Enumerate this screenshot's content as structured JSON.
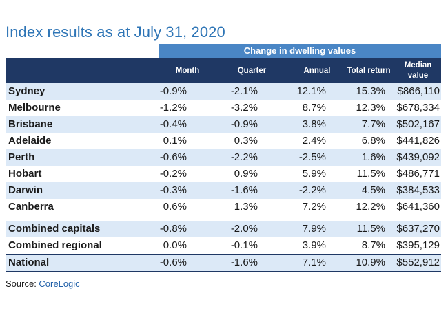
{
  "title": "Index results as at July 31, 2020",
  "band_label": "Change in dwelling values",
  "columns": [
    "Month",
    "Quarter",
    "Annual",
    "Total return",
    "Median value"
  ],
  "rows": [
    {
      "city": "Sydney",
      "month": "-0.9%",
      "quarter": "-2.1%",
      "annual": "12.1%",
      "total": "15.3%",
      "median": "$866,110"
    },
    {
      "city": "Melbourne",
      "month": "-1.2%",
      "quarter": "-3.2%",
      "annual": "8.7%",
      "total": "12.3%",
      "median": "$678,334"
    },
    {
      "city": "Brisbane",
      "month": "-0.4%",
      "quarter": "-0.9%",
      "annual": "3.8%",
      "total": "7.7%",
      "median": "$502,167"
    },
    {
      "city": "Adelaide",
      "month": "0.1%",
      "quarter": "0.3%",
      "annual": "2.4%",
      "total": "6.8%",
      "median": "$441,826"
    },
    {
      "city": "Perth",
      "month": "-0.6%",
      "quarter": "-2.2%",
      "annual": "-2.5%",
      "total": "1.6%",
      "median": "$439,092"
    },
    {
      "city": "Hobart",
      "month": "-0.2%",
      "quarter": "0.9%",
      "annual": "5.9%",
      "total": "11.5%",
      "median": "$486,771"
    },
    {
      "city": "Darwin",
      "month": "-0.3%",
      "quarter": "-1.6%",
      "annual": "-2.2%",
      "total": "4.5%",
      "median": "$384,533"
    },
    {
      "city": "Canberra",
      "month": "0.6%",
      "quarter": "1.3%",
      "annual": "7.2%",
      "total": "12.2%",
      "median": "$641,360"
    },
    {
      "city": "Combined capitals",
      "month": "-0.8%",
      "quarter": "-2.0%",
      "annual": "7.9%",
      "total": "11.5%",
      "median": "$637,270"
    },
    {
      "city": "Combined regional",
      "month": "0.0%",
      "quarter": "-0.1%",
      "annual": "3.9%",
      "total": "8.7%",
      "median": "$395,129"
    },
    {
      "city": "National",
      "month": "-0.6%",
      "quarter": "-1.6%",
      "annual": "7.1%",
      "total": "10.9%",
      "median": "$552,912"
    }
  ],
  "source_label": "Source: ",
  "source_link": "CoreLogic",
  "colors": {
    "title": "#2e75b6",
    "band": "#4a86c5",
    "header": "#1f3864",
    "row_shade": "#dce9f7",
    "link": "#1f5fa8"
  }
}
